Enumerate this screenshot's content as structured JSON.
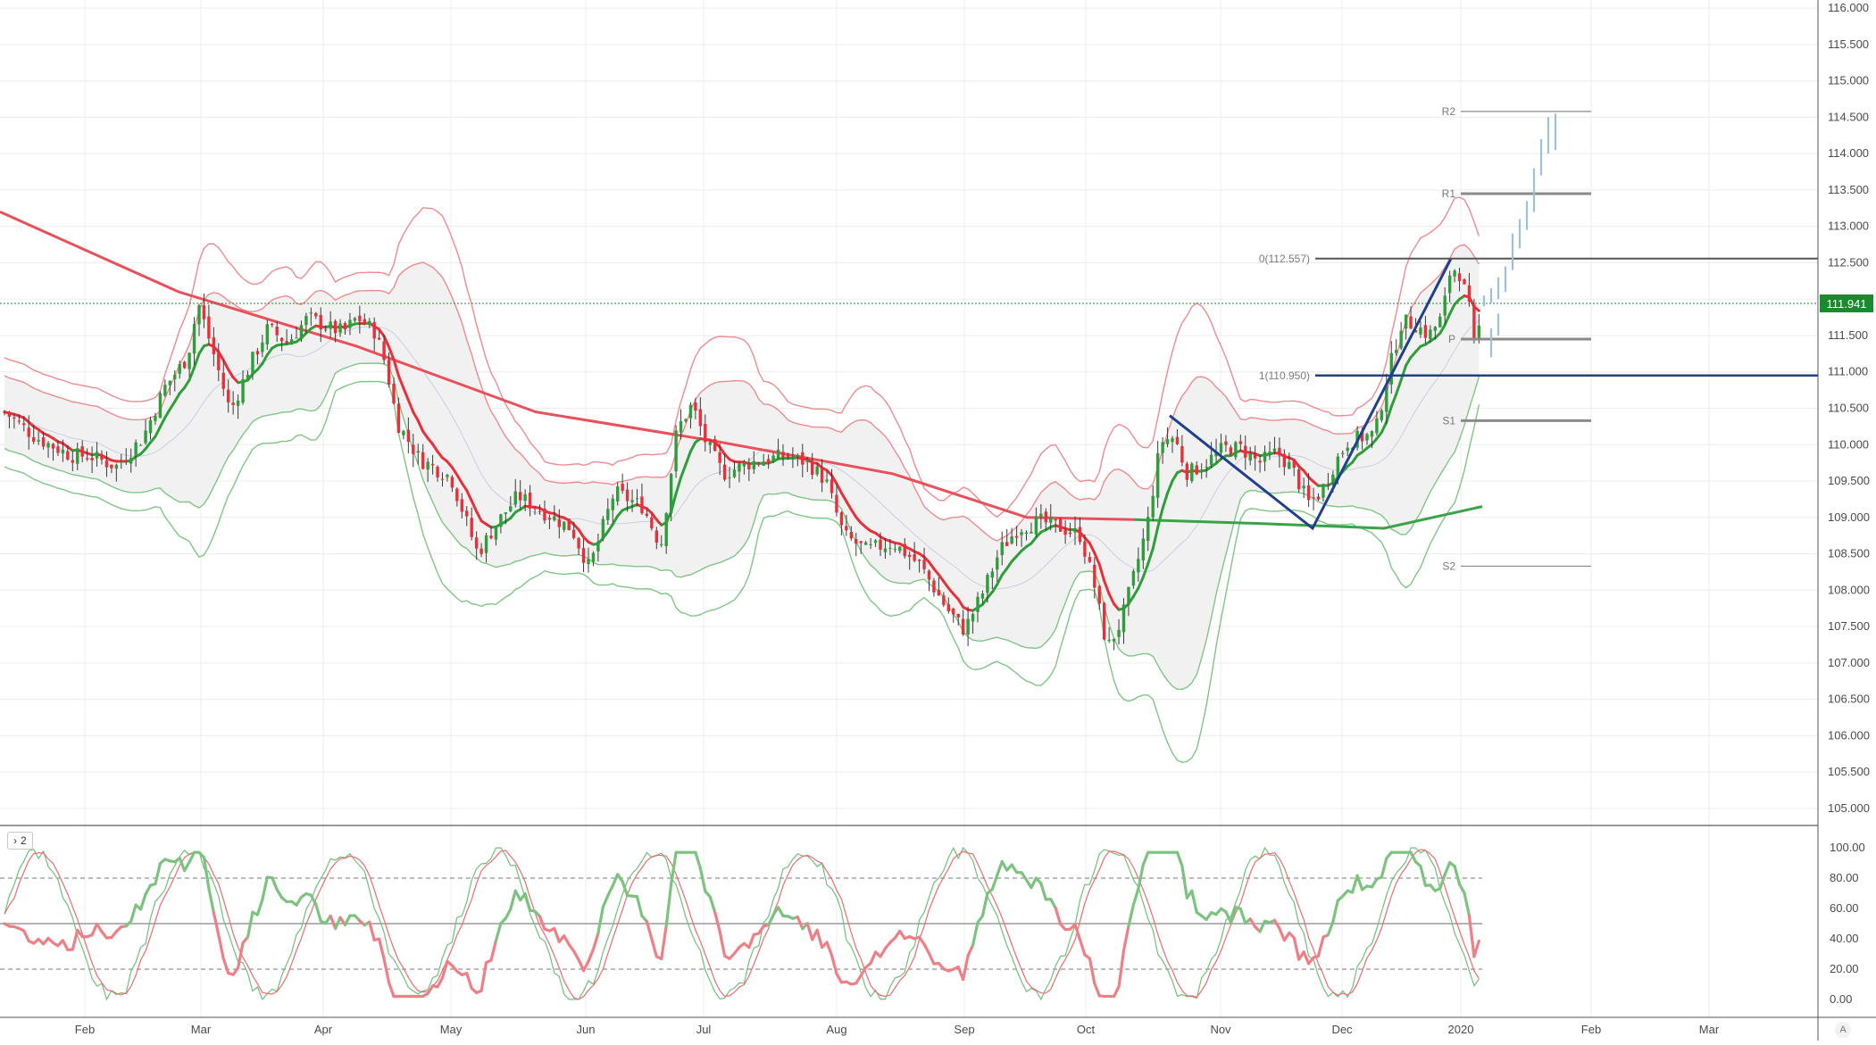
{
  "chart_data": [
    {
      "type": "candlestick",
      "title": "",
      "price_axis": {
        "ticks": [
          "116.000",
          "115.500",
          "115.000",
          "114.500",
          "114.000",
          "113.500",
          "113.000",
          "112.500",
          "112.000",
          "111.500",
          "111.000",
          "110.500",
          "110.000",
          "109.500",
          "109.000",
          "108.500",
          "108.000",
          "107.500",
          "107.000",
          "106.500",
          "106.000",
          "105.500",
          "105.000"
        ],
        "range": [
          104.95,
          116.05
        ]
      },
      "time_axis": {
        "labels": [
          "Feb",
          "Mar",
          "Apr",
          "May",
          "Jun",
          "Jul",
          "Aug",
          "Sep",
          "Oct",
          "Nov",
          "Dec",
          "2020",
          "Feb",
          "Mar"
        ]
      },
      "last_price": "111.941",
      "last_price_color": "#1b8a2e",
      "level_lines": [
        {
          "label": "R2",
          "value": 114.58
        },
        {
          "label": "R1",
          "value": 113.45
        },
        {
          "label": "P",
          "value": 111.45
        },
        {
          "label": "S1",
          "value": 110.33
        },
        {
          "label": "S2",
          "value": 108.33
        }
      ],
      "fib_levels": [
        {
          "label": "0(112.557)",
          "value": 112.557
        },
        {
          "label": "1(110.950)",
          "value": 110.95
        }
      ],
      "colors": {
        "up": "#2e9e3a",
        "down": "#e8303a",
        "ma": "#e8505a",
        "long_ma_up": "#3aa347",
        "fib": "#1f3f8f",
        "forecast": "#9fc0dd"
      }
    },
    {
      "type": "line",
      "pane_tag": "2",
      "y_ticks": [
        "100.00",
        "80.00",
        "60.00",
        "40.00",
        "20.00",
        "0.00"
      ],
      "range": [
        -3,
        103
      ],
      "reference_lines": [
        80,
        50,
        20
      ]
    }
  ]
}
